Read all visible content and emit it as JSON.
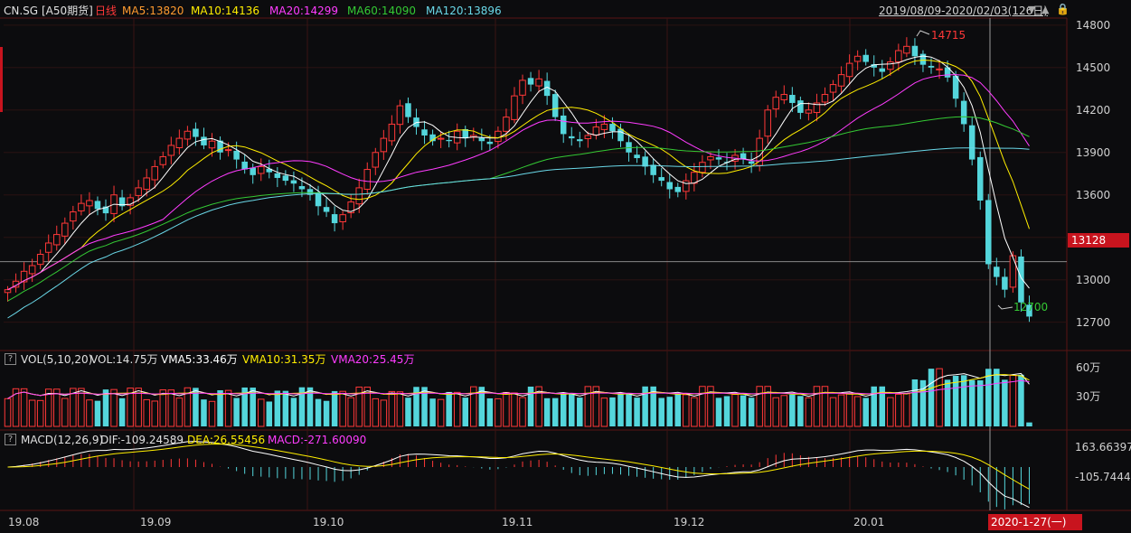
{
  "header": {
    "symbol": "CN.SG",
    "name": "[A50期货]",
    "period": "日线",
    "ma5": "MA5:13820",
    "ma10": "MA10:14136",
    "ma20": "MA20:14299",
    "ma60": "MA60:14090",
    "ma120": "MA120:13896",
    "range": "2019/08/09-2020/02/03(126日)",
    "range_dropdown_icon": "triangle-down-icon",
    "range_up_icon": "triangle-up-icon",
    "range_lock_icon": "lock-icon"
  },
  "price_axis": [
    "14800",
    "14500",
    "14200",
    "13900",
    "13600",
    "13300",
    "13000",
    "12700"
  ],
  "current_price_tag": "13128",
  "annotations": {
    "high": "14715",
    "low": "12700"
  },
  "volume_panel": {
    "help": "?",
    "label": "VOL(5,10,20)",
    "vol": "VOL:14.75万",
    "vma5": "VMA5:33.46万",
    "vma10": "VMA10:31.35万",
    "vma20": "VMA20:25.45万",
    "axis": [
      "60万",
      "30万"
    ]
  },
  "macd_panel": {
    "help": "?",
    "label": "MACD(12,26,9)",
    "dif": "DIF:-109.24589",
    "dea": "DEA:26.55456",
    "macd": "MACD:-271.60090",
    "axis": [
      "163.66397",
      "-105.7444"
    ]
  },
  "time_axis": [
    "19.08",
    "19.09",
    "19.10",
    "19.11",
    "19.12",
    "20.01"
  ],
  "cursor_date": "2020-1-27(一)",
  "colors": {
    "bg": "#0c0c0e",
    "up": "#ff3838",
    "down": "#54d6dc",
    "ma5": "#ffffff",
    "ma10": "#ffee00",
    "ma20": "#ff3cff",
    "ma60": "#34c934",
    "ma120": "#6ad8e8",
    "grid": "#2a1212",
    "tag": "#c8141e"
  },
  "chart_data": {
    "type": "candlestick",
    "title": "CN.SG [A50期货] 日线",
    "ylim": [
      12500,
      14850
    ],
    "closes": [
      12930,
      12990,
      13060,
      13100,
      13180,
      13260,
      13320,
      13400,
      13480,
      13540,
      13560,
      13500,
      13470,
      13600,
      13520,
      13580,
      13650,
      13720,
      13800,
      13870,
      13950,
      14000,
      14050,
      14010,
      13950,
      13980,
      13900,
      13920,
      13850,
      13780,
      13740,
      13800,
      13760,
      13720,
      13700,
      13680,
      13640,
      13600,
      13520,
      13480,
      13400,
      13460,
      13550,
      13650,
      13780,
      13900,
      14000,
      14100,
      14230,
      14150,
      14080,
      14020,
      13980,
      14000,
      13980,
      14050,
      14000,
      14020,
      13980,
      13960,
      14050,
      14150,
      14300,
      14410,
      14380,
      14420,
      14300,
      14150,
      14030,
      14000,
      13980,
      14020,
      14080,
      14100,
      14050,
      13980,
      13900,
      13860,
      13800,
      13740,
      13700,
      13640,
      13620,
      13700,
      13760,
      13830,
      13870,
      13850,
      13830,
      13880,
      13850,
      13820,
      14000,
      14200,
      14290,
      14310,
      14250,
      14180,
      14200,
      14250,
      14310,
      14380,
      14450,
      14530,
      14580,
      14540,
      14500,
      14470,
      14540,
      14620,
      14650,
      14580,
      14520,
      14500,
      14490,
      14430,
      14280,
      14100,
      13850,
      13560,
      13110,
      13020,
      12930,
      13170,
      12840,
      12740
    ]
  }
}
